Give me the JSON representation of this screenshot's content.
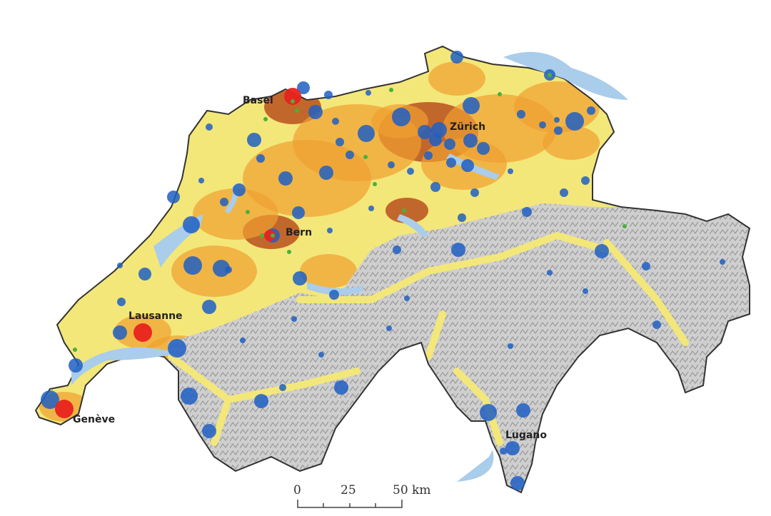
{
  "map": {
    "cities": [
      {
        "name": "Basel"
      },
      {
        "name": "Zürich"
      },
      {
        "name": "Bern"
      },
      {
        "name": "Lausanne"
      },
      {
        "name": "Genève"
      },
      {
        "name": "Lugano"
      }
    ],
    "scale_bar": {
      "labels": [
        "0",
        "25",
        "50 km"
      ]
    },
    "colors": {
      "lowland": "#f3e77a",
      "urban_mid": "#f0a030",
      "urban_high": "#b8501e",
      "alps": "#c8c8c8",
      "lake": "#a9cdea",
      "circle_blue": "#1f5fc4",
      "circle_red": "#e8231e",
      "dot_green": "#4caf3a",
      "border": "#333333"
    }
  }
}
